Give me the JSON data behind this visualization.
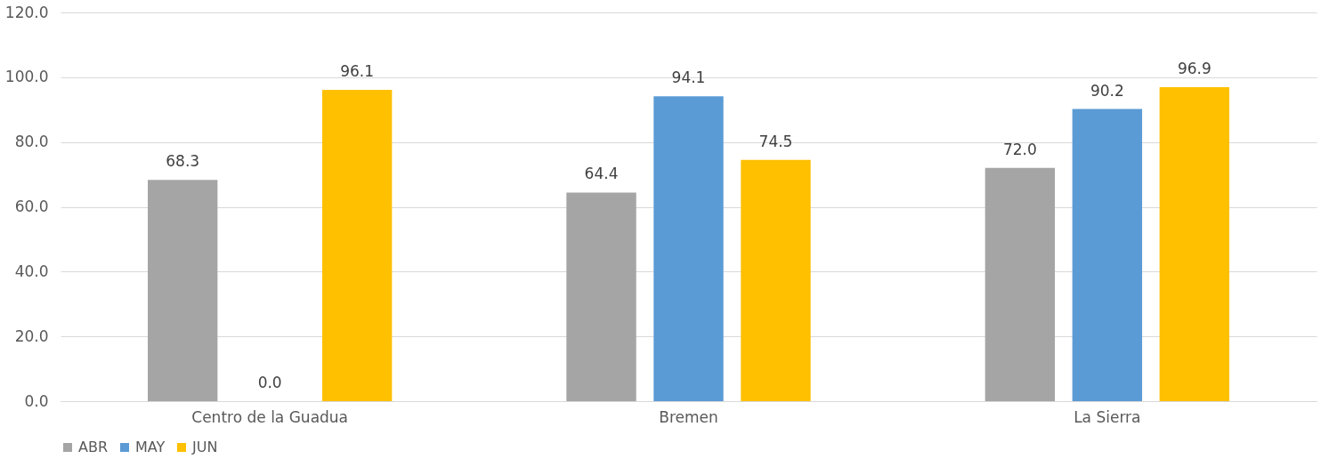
{
  "chart_data": {
    "type": "bar",
    "categories": [
      "Centro de la Guadua",
      "Bremen",
      "La Sierra"
    ],
    "series": [
      {
        "name": "ABR",
        "color": "#a5a5a5",
        "values": [
          68.3,
          64.4,
          72.0
        ],
        "value_labels": [
          "68.3",
          "64.4",
          "72.0"
        ]
      },
      {
        "name": "MAY",
        "color": "#5b9bd5",
        "values": [
          0.0,
          94.1,
          90.2
        ],
        "value_labels": [
          "0.0",
          "94.1",
          "90.2"
        ]
      },
      {
        "name": "JUN",
        "color": "#ffc000",
        "values": [
          96.1,
          74.5,
          96.9
        ],
        "value_labels": [
          "96.1",
          "74.5",
          "96.9"
        ]
      }
    ],
    "ylim": [
      0,
      120
    ],
    "yticks": [
      {
        "value": 0,
        "label": "0.0"
      },
      {
        "value": 20,
        "label": "20.0"
      },
      {
        "value": 40,
        "label": "40.0"
      },
      {
        "value": 60,
        "label": "60.0"
      },
      {
        "value": 80,
        "label": "80.0"
      },
      {
        "value": 100,
        "label": "100.0"
      },
      {
        "value": 120,
        "label": "120.0"
      }
    ],
    "grid": "y",
    "legend": "bottom"
  }
}
